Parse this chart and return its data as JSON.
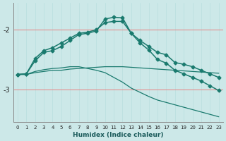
{
  "xlabel": "Humidex (Indice chaleur)",
  "bg_color": "#cce8e8",
  "line_color": "#1a7a6e",
  "hgrid_color": "#e88080",
  "vgrid_color": "#b8dede",
  "xlim": [
    -0.5,
    23.5
  ],
  "ylim": [
    -3.55,
    -1.55
  ],
  "yticks": [
    -3,
    -2
  ],
  "xticks": [
    0,
    1,
    2,
    3,
    4,
    5,
    6,
    7,
    8,
    9,
    10,
    11,
    12,
    13,
    14,
    15,
    16,
    17,
    18,
    19,
    20,
    21,
    22,
    23
  ],
  "xlabel_fontsize": 6.5,
  "ytick_fontsize": 7,
  "xtick_fontsize": 5,
  "series": [
    {
      "x": [
        0,
        1,
        2,
        3,
        4,
        5,
        6,
        7,
        8,
        9,
        10,
        11,
        12,
        13,
        14,
        15,
        16,
        17,
        18,
        19,
        20,
        21,
        22,
        23
      ],
      "y": [
        -2.75,
        -2.74,
        -2.52,
        -2.38,
        -2.35,
        -2.28,
        -2.18,
        -2.08,
        -2.06,
        -2.02,
        -1.82,
        -1.79,
        -1.8,
        -2.06,
        -2.18,
        -2.28,
        -2.38,
        -2.42,
        -2.55,
        -2.58,
        -2.62,
        -2.68,
        -2.74,
        -2.8
      ],
      "marker": "D",
      "markersize": 2.5,
      "linewidth": 1.1
    },
    {
      "x": [
        0,
        1,
        2,
        3,
        4,
        5,
        6,
        7,
        8,
        9,
        10,
        11,
        12,
        13,
        14,
        15,
        16,
        17,
        18,
        19,
        20,
        21,
        22,
        23
      ],
      "y": [
        -2.75,
        -2.74,
        -2.48,
        -2.35,
        -2.3,
        -2.22,
        -2.14,
        -2.06,
        -2.04,
        -2.0,
        -1.88,
        -1.86,
        -1.86,
        -2.06,
        -2.22,
        -2.34,
        -2.5,
        -2.56,
        -2.68,
        -2.74,
        -2.8,
        -2.86,
        -2.94,
        -3.02
      ],
      "marker": "D",
      "markersize": 2.5,
      "linewidth": 1.1
    },
    {
      "x": [
        0,
        1,
        2,
        3,
        4,
        5,
        6,
        7,
        8,
        9,
        10,
        11,
        12,
        13,
        14,
        15,
        16,
        17,
        18,
        19,
        20,
        21,
        22,
        23
      ],
      "y": [
        -2.75,
        -2.75,
        -2.72,
        -2.7,
        -2.68,
        -2.68,
        -2.66,
        -2.65,
        -2.64,
        -2.63,
        -2.62,
        -2.62,
        -2.62,
        -2.63,
        -2.64,
        -2.65,
        -2.66,
        -2.67,
        -2.68,
        -2.69,
        -2.7,
        -2.71,
        -2.72,
        -2.73
      ],
      "marker": null,
      "markersize": 0,
      "linewidth": 0.9
    },
    {
      "x": [
        0,
        1,
        2,
        3,
        4,
        5,
        6,
        7,
        8,
        9,
        10,
        11,
        12,
        13,
        14,
        15,
        16,
        17,
        18,
        19,
        20,
        21,
        22,
        23
      ],
      "y": [
        -2.75,
        -2.75,
        -2.7,
        -2.67,
        -2.65,
        -2.64,
        -2.62,
        -2.62,
        -2.65,
        -2.68,
        -2.72,
        -2.8,
        -2.88,
        -2.98,
        -3.05,
        -3.12,
        -3.18,
        -3.22,
        -3.26,
        -3.3,
        -3.34,
        -3.38,
        -3.42,
        -3.46
      ],
      "marker": null,
      "markersize": 0,
      "linewidth": 0.9
    }
  ]
}
